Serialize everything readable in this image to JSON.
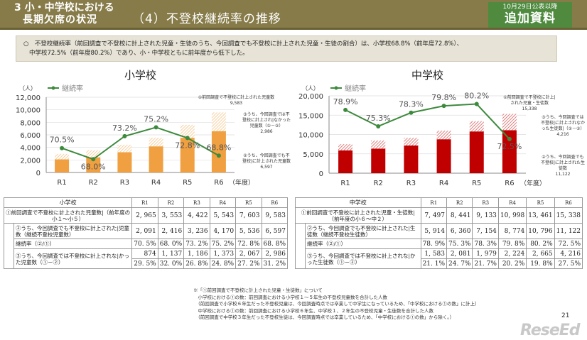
{
  "header": {
    "section_line1": "3 小・中学校における",
    "section_line2": "長期欠席の状況",
    "subtitle": "（4）不登校継続率の推移",
    "badge_date": "10月29日公表以降",
    "badge_title": "追加資料"
  },
  "info": {
    "line1": "○　不登校継続率（前回調査で不登校に計上された児童・生徒のうち、今回調査でも不登校に計上された児童・生徒の割合）は、小学校68.8%（前年度72.8%）、",
    "line2": "中学校72.5%（前年度80.2%）であり、小・中学校ともに前年度から低下した。"
  },
  "colors": {
    "header": "#867b49",
    "badge": "#4f8a3f",
    "elementary_bar": "#f0a040",
    "junior_bar": "#c00000",
    "line": "#3d8a3d"
  },
  "chart_data": [
    {
      "type": "bar+line",
      "title": "小学校",
      "yunit": "（人）",
      "xunit": "（年度）",
      "legend": "継続率",
      "legend_position": "top-left",
      "categories": [
        "R1",
        "R2",
        "R3",
        "R4",
        "R5",
        "R6"
      ],
      "ylim": [
        0,
        12000
      ],
      "yticks": [
        "0",
        "2,000",
        "4,000",
        "6,000",
        "8,000",
        "10,000",
        "12,000"
      ],
      "grid": true,
      "stacked": true,
      "series": [
        {
          "name": "②うち、今回調査でも不登校に計上された児童数",
          "values": [
            2091,
            2416,
            3236,
            4170,
            5536,
            6597
          ]
        },
        {
          "name": "③うち、今回調査では不登校に計上されなかった児童数（①－②）",
          "values": [
            874,
            1137,
            1186,
            1373,
            2067,
            2986
          ]
        }
      ],
      "rate": {
        "name": "継続率",
        "values": [
          70.5,
          68.0,
          73.2,
          75.2,
          72.8,
          68.8
        ],
        "labels": [
          "70.5%",
          "68.0%",
          "73.2%",
          "75.2%",
          "72.8%",
          "68.8%"
        ],
        "secondary_range": [
          65,
          82
        ]
      },
      "annotations": [
        {
          "text": "①前回調査で不登校に計上された児童数",
          "value": "9,583"
        },
        {
          "text": "③うち、今回調査では不登校に計上され|なかった児童数（①－②）",
          "value": "2,986"
        },
        {
          "text": "②うち、今回調査でも不登校|に計上された児童数",
          "value": "6,597"
        }
      ]
    },
    {
      "type": "bar+line",
      "title": "中学校",
      "yunit": "（人）",
      "xunit": "（年度）",
      "legend": "継続率",
      "legend_position": "top-left",
      "categories": [
        "R1",
        "R2",
        "R3",
        "R4",
        "R5",
        "R6"
      ],
      "ylim": [
        0,
        20000
      ],
      "yticks": [
        "0",
        "5,000",
        "10,000",
        "15,000",
        "20,000"
      ],
      "grid": true,
      "stacked": true,
      "series": [
        {
          "name": "②うち、今回調査でも不登校に計上された生徒数",
          "values": [
            5914,
            6360,
            7154,
            8774,
            10796,
            11122
          ]
        },
        {
          "name": "③うち、今回調査では不登校に計上されなかった生徒数（①－②）",
          "values": [
            1583,
            2081,
            1979,
            2224,
            2665,
            4216
          ]
        }
      ],
      "rate": {
        "name": "継続率",
        "values": [
          78.9,
          75.3,
          78.3,
          79.8,
          80.2,
          72.5
        ],
        "labels": [
          "78.9%",
          "75.3%",
          "78.3%",
          "79.8%",
          "80.2%",
          "72.5%"
        ],
        "secondary_range": [
          65,
          82
        ]
      },
      "annotations": [
        {
          "text": "①前回調査で不登校に計上|された児童・生徒数",
          "value": "15,338"
        },
        {
          "text": "③うち、今回調査では不登校|に計上されなかった生徒数|（①－②）",
          "value": "4,216"
        },
        {
          "text": "②うち、今回調査でも不登校|に計上された生徒数",
          "value": "11,122"
        }
      ]
    }
  ],
  "tables": [
    {
      "header": "小学校",
      "years": [
        "R1",
        "R2",
        "R3",
        "R4",
        "R5",
        "R6"
      ],
      "rows": [
        {
          "label": "①前回調査で不登校に計上された児童数|（前年度の小１～小５）",
          "values": [
            "2, 965",
            "3, 553",
            "4, 422",
            "5, 543",
            "7, 603",
            "9, 583"
          ]
        },
        {
          "label": "②うち、今回調査でも不登校に計上された|児童数（継続不登校児童数）",
          "values": [
            "2, 091",
            "2, 416",
            "3, 236",
            "4, 170",
            "5, 536",
            "6, 597"
          ]
        },
        {
          "label": "継続率（②/①）",
          "values": [
            "70. 5%",
            "68. 0%",
            "73. 2%",
            "75. 2%",
            "72. 8%",
            "68. 8%"
          ]
        },
        {
          "label": "③うち、今回調査では不登校に計上されな|かった児童数（①－②）",
          "values": [
            "874",
            "1, 137",
            "1, 186",
            "1, 373",
            "2, 067",
            "2, 986"
          ],
          "values2": [
            "29. 5%",
            "32. 0%",
            "26. 8%",
            "24. 8%",
            "27. 2%",
            "31. 2%"
          ]
        }
      ]
    },
    {
      "header": "中学校",
      "years": [
        "R1",
        "R2",
        "R3",
        "R4",
        "R5",
        "R6"
      ],
      "rows": [
        {
          "label": "①前回調査で不登校に計上された児童・生徒数|（前年度の小６～中２）",
          "values": [
            "7, 497",
            "8, 441",
            "9, 133",
            "10, 998",
            "13, 461",
            "15, 338"
          ]
        },
        {
          "label": "②うち、今回調査でも不登校に計上された|生徒数（継続不登校生徒数）",
          "values": [
            "5, 914",
            "6, 360",
            "7, 154",
            "8, 774",
            "10, 796",
            "11, 122"
          ]
        },
        {
          "label": "継続率（②/①）",
          "values": [
            "78. 9%",
            "75. 3%",
            "78. 3%",
            "79. 8%",
            "80. 2%",
            "72. 5%"
          ]
        },
        {
          "label": "③うち、今回調査では不登校に計上されな|かった生徒数（①－②）",
          "values": [
            "1, 583",
            "2, 081",
            "1, 979",
            "2, 224",
            "2, 665",
            "4, 216"
          ],
          "values2": [
            "21. 1%",
            "24. 7%",
            "21. 7%",
            "20. 2%",
            "19. 8%",
            "27. 5%"
          ]
        }
      ]
    }
  ],
  "footnote": [
    "※「①前回調査で不登校に計上された児童・生徒数」について",
    "　小学校における①の数：前回調査における小学校１～５年生の不登校児童数を合計した人数",
    "　（前回調査で小学校６年生だった不登校児童は、今回調査時点では卒業して中学生になっているため、「中学校における①の数」に計上）",
    "　中学校における①の数：前回調査における小学校６年生、中学校１、２年生の不登校児童・生徒数を合計した人数",
    "　（前回調査で中学校３年生だった不登校生徒は、今回調査時点では卒業しているため、「中学校における①の数」から除く。）"
  ],
  "page_number": "21",
  "logo": "ReseEd"
}
